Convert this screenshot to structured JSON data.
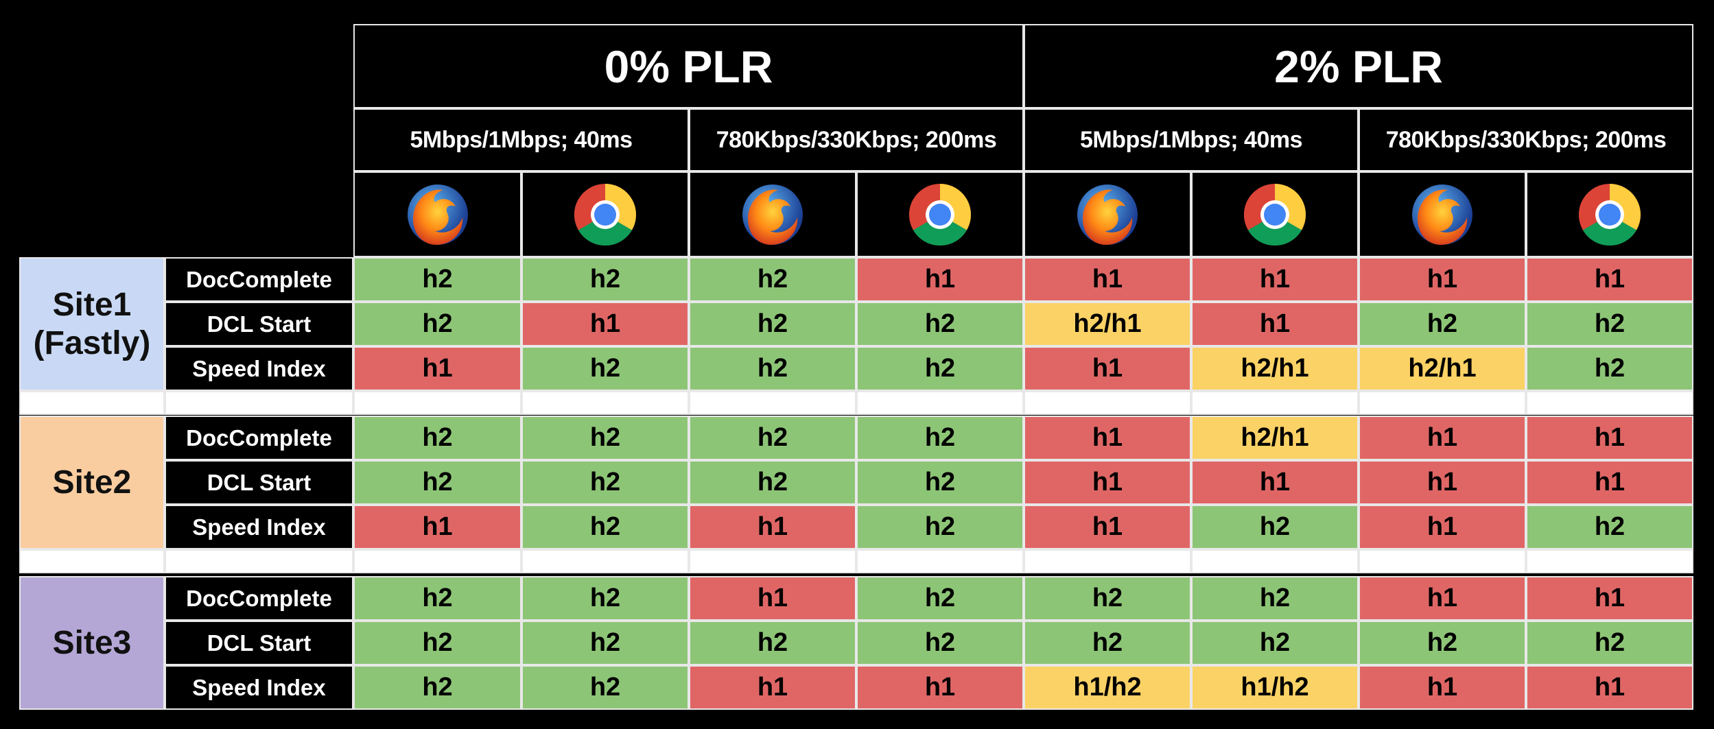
{
  "colors": {
    "h2": "#8dc576",
    "h1": "#e06666",
    "mixed": "#fbd265",
    "site1": "#c9d9f5",
    "site2": "#f9cda0",
    "site3": "#b4a7d6"
  },
  "chart_data": {
    "type": "table",
    "plr_groups": [
      {
        "label": "0% PLR",
        "networks": [
          {
            "label": "5Mbps/1Mbps; 40ms",
            "browsers": [
              "firefox-icon",
              "chrome-icon"
            ]
          },
          {
            "label": "780Kbps/330Kbps; 200ms",
            "browsers": [
              "firefox-icon",
              "chrome-icon"
            ]
          }
        ]
      },
      {
        "label": "2% PLR",
        "networks": [
          {
            "label": "5Mbps/1Mbps; 40ms",
            "browsers": [
              "firefox-icon",
              "chrome-icon"
            ]
          },
          {
            "label": "780Kbps/330Kbps; 200ms",
            "browsers": [
              "firefox-icon",
              "chrome-icon"
            ]
          }
        ]
      }
    ],
    "sites": [
      {
        "label": "Site1\n(Fastly)",
        "color_key": "site1",
        "rows": [
          {
            "metric": "DocComplete",
            "values": [
              "h2",
              "h2",
              "h2",
              "h1",
              "h1",
              "h1",
              "h1",
              "h1"
            ]
          },
          {
            "metric": "DCL Start",
            "values": [
              "h2",
              "h1",
              "h2",
              "h2",
              "h2/h1",
              "h1",
              "h2",
              "h2"
            ]
          },
          {
            "metric": "Speed Index",
            "values": [
              "h1",
              "h2",
              "h2",
              "h2",
              "h1",
              "h2/h1",
              "h2/h1",
              "h2"
            ]
          }
        ]
      },
      {
        "label": "Site2",
        "color_key": "site2",
        "rows": [
          {
            "metric": "DocComplete",
            "values": [
              "h2",
              "h2",
              "h2",
              "h2",
              "h1",
              "h2/h1",
              "h1",
              "h1"
            ]
          },
          {
            "metric": "DCL Start",
            "values": [
              "h2",
              "h2",
              "h2",
              "h2",
              "h1",
              "h1",
              "h1",
              "h1"
            ]
          },
          {
            "metric": "Speed Index",
            "values": [
              "h1",
              "h2",
              "h1",
              "h2",
              "h1",
              "h2",
              "h1",
              "h2"
            ]
          }
        ]
      },
      {
        "label": "Site3",
        "color_key": "site3",
        "rows": [
          {
            "metric": "DocComplete",
            "values": [
              "h2",
              "h2",
              "h1",
              "h2",
              "h2",
              "h2",
              "h1",
              "h1"
            ]
          },
          {
            "metric": "DCL Start",
            "values": [
              "h2",
              "h2",
              "h2",
              "h2",
              "h2",
              "h2",
              "h2",
              "h2"
            ]
          },
          {
            "metric": "Speed Index",
            "values": [
              "h2",
              "h2",
              "h1",
              "h1",
              "h1/h2",
              "h1/h2",
              "h1",
              "h1"
            ]
          }
        ]
      }
    ]
  }
}
